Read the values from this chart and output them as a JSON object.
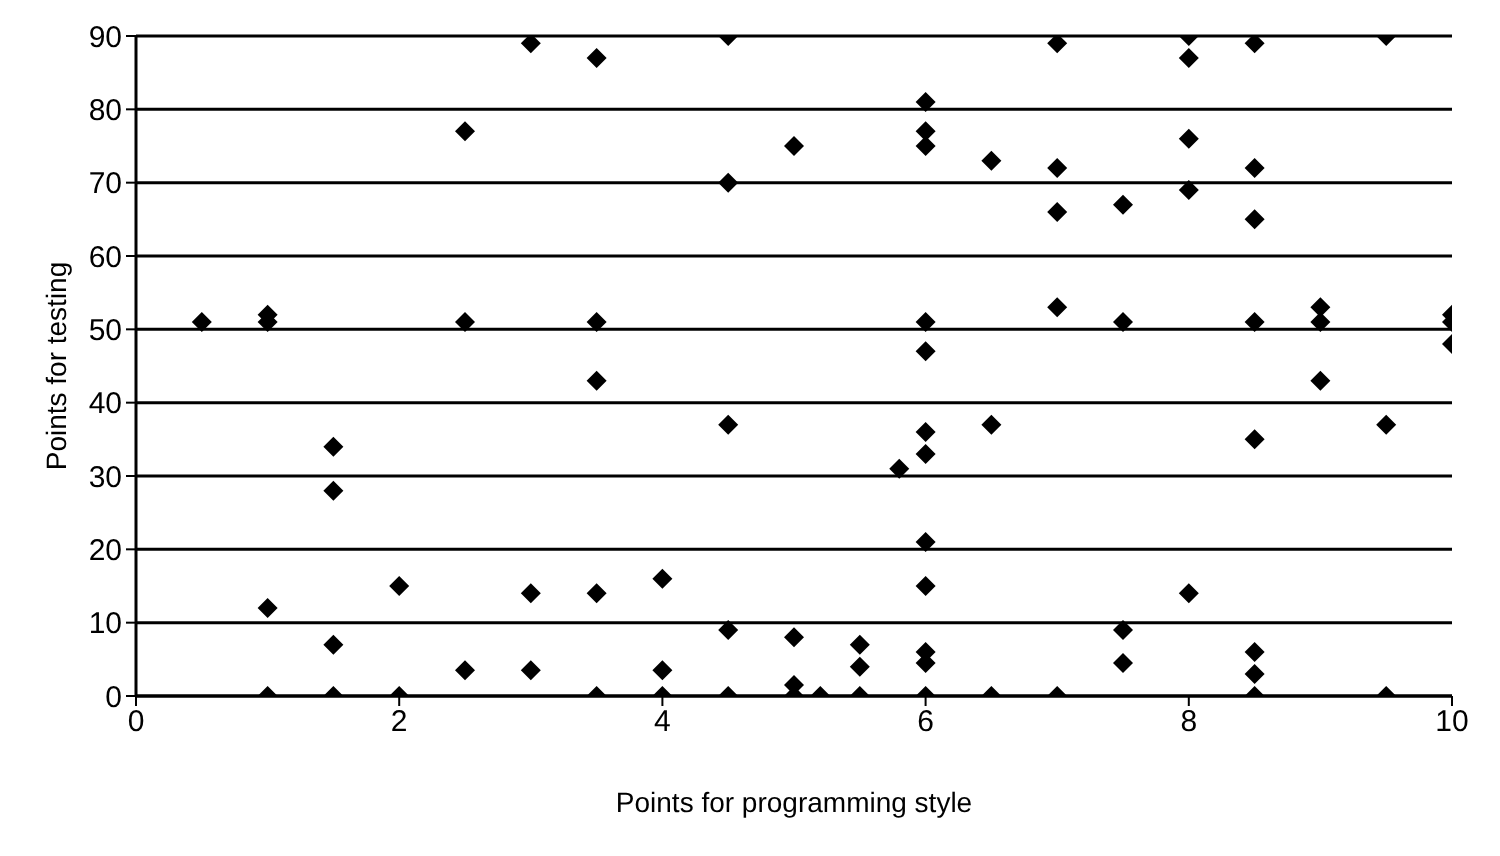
{
  "chart_data": {
    "type": "scatter",
    "xlabel": "Points for programming style",
    "ylabel": "Points for testing",
    "x": [
      0.5,
      1,
      1,
      1,
      1,
      1.5,
      1.5,
      1.5,
      1.5,
      2,
      2,
      2.5,
      2.5,
      2.5,
      3,
      3,
      3,
      3.5,
      3.5,
      3.5,
      3.5,
      3.5,
      4,
      4,
      4,
      4.5,
      4.5,
      4.5,
      4.5,
      4.5,
      5,
      5,
      5,
      5,
      5.2,
      5.5,
      5.5,
      5.5,
      5.8,
      6,
      6,
      6,
      6,
      6,
      6,
      6,
      6,
      6,
      6,
      6,
      6,
      6.5,
      6.5,
      6.5,
      7,
      7,
      7,
      7,
      7,
      7.5,
      7.5,
      7.5,
      7.5,
      8,
      8,
      8,
      8,
      8,
      8.5,
      8.5,
      8.5,
      8.5,
      8.5,
      8.5,
      8.5,
      8.5,
      9,
      9,
      9,
      9.5,
      9.5,
      9.5,
      10,
      10,
      10
    ],
    "values": [
      51,
      52,
      51,
      12,
      0,
      34,
      28,
      7,
      0,
      15,
      0,
      77,
      51,
      3.5,
      89,
      14,
      3.5,
      87,
      51,
      43,
      14,
      0,
      16,
      3.5,
      0,
      90,
      70,
      37,
      9,
      0,
      75,
      8,
      1.5,
      0,
      0,
      7,
      4,
      0,
      31,
      81,
      77,
      75,
      51,
      47,
      36,
      33,
      21,
      15,
      6,
      4.5,
      0,
      73,
      37,
      0,
      89,
      72,
      66,
      53,
      0,
      67,
      51,
      9,
      4.5,
      90,
      87,
      76,
      69,
      14,
      89,
      72,
      65,
      51,
      35,
      6,
      3,
      0,
      53,
      51,
      43,
      90,
      37,
      0,
      52,
      51,
      48
    ],
    "color": "#000000",
    "marker": "diamond",
    "xlim": [
      0,
      10
    ],
    "xticks": [
      0,
      2,
      4,
      6,
      8,
      10
    ],
    "ylim": [
      0,
      90
    ],
    "yticks": [
      0,
      10,
      20,
      30,
      40,
      50,
      60,
      70,
      80,
      90
    ],
    "grid": "y"
  }
}
